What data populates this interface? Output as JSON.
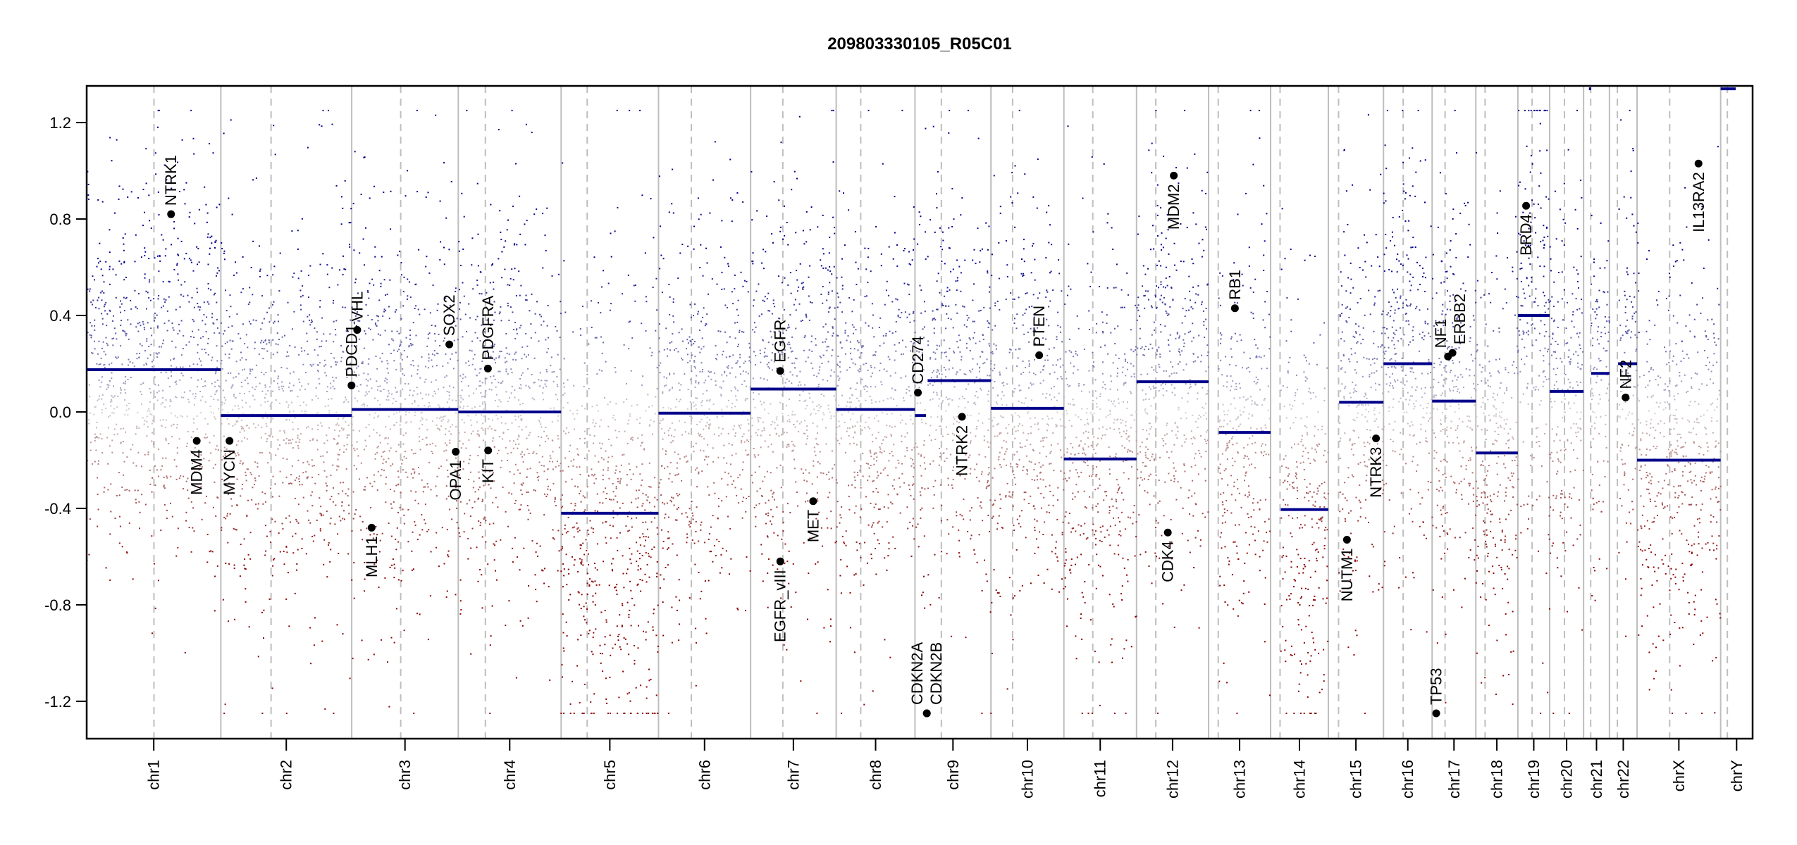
{
  "chart_data": {
    "type": "scatter",
    "title": "209803330105_R05C01",
    "xlabel": "",
    "ylabel": "",
    "ylim": [
      -1.355,
      1.352
    ],
    "yticks": [
      1.2,
      0.8,
      0.4,
      0.0,
      -0.4,
      -0.8,
      -1.2
    ],
    "ytick_labels": [
      "1.2",
      "0.8",
      "0.4",
      "0.0",
      "-0.4",
      "-0.8",
      "-1.2"
    ],
    "clamp": [
      -1.25,
      1.25
    ],
    "colors": {
      "gain": "#00008b",
      "neutral": "#d3d3d3",
      "loss": "#8b0000",
      "segment": "#00008b",
      "boundary": "#bebebe",
      "gene_point": "#000000"
    },
    "chromosomes": [
      {
        "name": "chr1",
        "length_mb": 249.3,
        "centromere_mb": 125.0
      },
      {
        "name": "chr2",
        "length_mb": 243.2,
        "centromere_mb": 93.3
      },
      {
        "name": "chr3",
        "length_mb": 198.0,
        "centromere_mb": 91.0
      },
      {
        "name": "chr4",
        "length_mb": 191.2,
        "centromere_mb": 50.4
      },
      {
        "name": "chr5",
        "length_mb": 180.9,
        "centromere_mb": 48.4
      },
      {
        "name": "chr6",
        "length_mb": 171.1,
        "centromere_mb": 61.0
      },
      {
        "name": "chr7",
        "length_mb": 159.1,
        "centromere_mb": 59.9
      },
      {
        "name": "chr8",
        "length_mb": 146.4,
        "centromere_mb": 45.6
      },
      {
        "name": "chr9",
        "length_mb": 141.2,
        "centromere_mb": 49.0
      },
      {
        "name": "chr10",
        "length_mb": 135.5,
        "centromere_mb": 40.2
      },
      {
        "name": "chr11",
        "length_mb": 135.0,
        "centromere_mb": 53.7
      },
      {
        "name": "chr12",
        "length_mb": 133.9,
        "centromere_mb": 35.8
      },
      {
        "name": "chr13",
        "length_mb": 115.2,
        "centromere_mb": 17.9
      },
      {
        "name": "chr14",
        "length_mb": 107.3,
        "centromere_mb": 17.6
      },
      {
        "name": "chr15",
        "length_mb": 102.5,
        "centromere_mb": 19.0
      },
      {
        "name": "chr16",
        "length_mb": 90.4,
        "centromere_mb": 36.6
      },
      {
        "name": "chr17",
        "length_mb": 81.2,
        "centromere_mb": 24.0
      },
      {
        "name": "chr18",
        "length_mb": 78.1,
        "centromere_mb": 17.2
      },
      {
        "name": "chr19",
        "length_mb": 59.1,
        "centromere_mb": 26.5
      },
      {
        "name": "chr20",
        "length_mb": 63.0,
        "centromere_mb": 27.5
      },
      {
        "name": "chr21",
        "length_mb": 48.1,
        "centromere_mb": 13.2
      },
      {
        "name": "chr22",
        "length_mb": 51.3,
        "centromere_mb": 14.7
      },
      {
        "name": "chrX",
        "length_mb": 155.3,
        "centromere_mb": 60.6
      },
      {
        "name": "chrY",
        "length_mb": 59.4,
        "centromere_mb": 12.5
      }
    ],
    "segments": [
      {
        "chrom": "chr1",
        "start": 0,
        "end": 249.3,
        "mean": 0.175
      },
      {
        "chrom": "chr2",
        "start": 0,
        "end": 243.2,
        "mean": -0.015
      },
      {
        "chrom": "chr3",
        "start": 0,
        "end": 198.0,
        "mean": 0.01
      },
      {
        "chrom": "chr4",
        "start": 0,
        "end": 191.2,
        "mean": 0.0
      },
      {
        "chrom": "chr5",
        "start": 0,
        "end": 180.9,
        "mean": -0.42
      },
      {
        "chrom": "chr6",
        "start": 0,
        "end": 171.1,
        "mean": -0.005
      },
      {
        "chrom": "chr7",
        "start": 0,
        "end": 159.1,
        "mean": 0.095
      },
      {
        "chrom": "chr8",
        "start": 0,
        "end": 146.4,
        "mean": 0.01
      },
      {
        "chrom": "chr9",
        "start": 0,
        "end": 20.5,
        "mean": -0.015
      },
      {
        "chrom": "chr9",
        "start": 23.5,
        "end": 141.2,
        "mean": 0.13
      },
      {
        "chrom": "chr10",
        "start": 0,
        "end": 135.5,
        "mean": 0.015
      },
      {
        "chrom": "chr11",
        "start": 0,
        "end": 135.0,
        "mean": -0.195
      },
      {
        "chrom": "chr12",
        "start": 0,
        "end": 133.9,
        "mean": 0.125
      },
      {
        "chrom": "chr13",
        "start": 19.0,
        "end": 115.2,
        "mean": -0.085
      },
      {
        "chrom": "chr14",
        "start": 19.0,
        "end": 107.3,
        "mean": -0.405
      },
      {
        "chrom": "chr15",
        "start": 20.0,
        "end": 102.5,
        "mean": 0.04
      },
      {
        "chrom": "chr16",
        "start": 0,
        "end": 90.4,
        "mean": 0.2
      },
      {
        "chrom": "chr17",
        "start": 0,
        "end": 81.2,
        "mean": 0.045
      },
      {
        "chrom": "chr18",
        "start": 0,
        "end": 78.1,
        "mean": -0.17
      },
      {
        "chrom": "chr19",
        "start": 0,
        "end": 59.1,
        "mean": 0.4
      },
      {
        "chrom": "chr20",
        "start": 0,
        "end": 63.0,
        "mean": 0.085
      },
      {
        "chrom": "chr21",
        "start": 10.0,
        "end": 14.0,
        "mean": 1.34
      },
      {
        "chrom": "chr21",
        "start": 14.0,
        "end": 48.1,
        "mean": 0.16
      },
      {
        "chrom": "chr22",
        "start": 16.0,
        "end": 51.3,
        "mean": 0.2
      },
      {
        "chrom": "chrX",
        "start": 0,
        "end": 155.3,
        "mean": -0.2
      },
      {
        "chrom": "chrY",
        "start": 0,
        "end": 28.0,
        "mean": 1.34
      }
    ],
    "genes": [
      {
        "name": "NTRK1",
        "chrom": "chr1",
        "pos": 156.8,
        "value": 0.82,
        "label": "above"
      },
      {
        "name": "MDM4",
        "chrom": "chr1",
        "pos": 204.5,
        "value": -0.12,
        "label": "below"
      },
      {
        "name": "MYCN",
        "chrom": "chr2",
        "pos": 16.1,
        "value": -0.12,
        "label": "below"
      },
      {
        "name": "PDCD1",
        "chrom": "chr2",
        "pos": 242.8,
        "value": 0.11,
        "label": "above"
      },
      {
        "name": "VHL",
        "chrom": "chr3",
        "pos": 10.2,
        "value": 0.34,
        "label": "above"
      },
      {
        "name": "MLH1",
        "chrom": "chr3",
        "pos": 37.0,
        "value": -0.48,
        "label": "below"
      },
      {
        "name": "SOX2",
        "chrom": "chr3",
        "pos": 181.4,
        "value": 0.28,
        "label": "above"
      },
      {
        "name": "OPA1",
        "chrom": "chr3",
        "pos": 193.3,
        "value": -0.165,
        "label": "below"
      },
      {
        "name": "PDGFRA",
        "chrom": "chr4",
        "pos": 55.1,
        "value": 0.18,
        "label": "above"
      },
      {
        "name": "KIT",
        "chrom": "chr4",
        "pos": 55.5,
        "value": -0.16,
        "label": "below"
      },
      {
        "name": "EGFR",
        "chrom": "chr7",
        "pos": 55.1,
        "value": 0.17,
        "label": "above"
      },
      {
        "name": "EGFR_vIII",
        "chrom": "chr7",
        "pos": 55.2,
        "value": -0.62,
        "label": "below"
      },
      {
        "name": "MET",
        "chrom": "chr7",
        "pos": 116.3,
        "value": -0.37,
        "label": "below"
      },
      {
        "name": "CD274",
        "chrom": "chr9",
        "pos": 5.45,
        "value": 0.08,
        "label": "above"
      },
      {
        "name": "CDKN2A",
        "chrom": "chr9",
        "pos": 21.97,
        "value": -1.25,
        "label": "above"
      },
      {
        "name": "CDKN2B",
        "chrom": "chr9",
        "pos": 22.0,
        "value": -1.25,
        "label": "above"
      },
      {
        "name": "NTRK2",
        "chrom": "chr9",
        "pos": 87.3,
        "value": -0.02,
        "label": "below"
      },
      {
        "name": "PTEN",
        "chrom": "chr10",
        "pos": 89.6,
        "value": 0.235,
        "label": "above"
      },
      {
        "name": "CDK4",
        "chrom": "chr12",
        "pos": 58.1,
        "value": -0.5,
        "label": "below"
      },
      {
        "name": "MDM2",
        "chrom": "chr12",
        "pos": 69.2,
        "value": 0.98,
        "label": "below"
      },
      {
        "name": "RB1",
        "chrom": "chr13",
        "pos": 48.9,
        "value": 0.43,
        "label": "above"
      },
      {
        "name": "NUTM1",
        "chrom": "chr15",
        "pos": 34.6,
        "value": -0.53,
        "label": "below"
      },
      {
        "name": "NTRK3",
        "chrom": "chr15",
        "pos": 88.6,
        "value": -0.11,
        "label": "below"
      },
      {
        "name": "TP53",
        "chrom": "chr17",
        "pos": 7.6,
        "value": -1.25,
        "label": "above"
      },
      {
        "name": "NF1",
        "chrom": "chr17",
        "pos": 29.5,
        "value": 0.23,
        "label": "above"
      },
      {
        "name": "ERBB2",
        "chrom": "chr17",
        "pos": 37.8,
        "value": 0.245,
        "label": "above"
      },
      {
        "name": "BRD4",
        "chrom": "chr19",
        "pos": 15.3,
        "value": 0.855,
        "label": "below"
      },
      {
        "name": "NF2",
        "chrom": "chr22",
        "pos": 30.0,
        "value": 0.06,
        "label": "above"
      },
      {
        "name": "IL13RA2",
        "chrom": "chrX",
        "pos": 114.2,
        "value": 1.03,
        "label": "below"
      }
    ]
  }
}
